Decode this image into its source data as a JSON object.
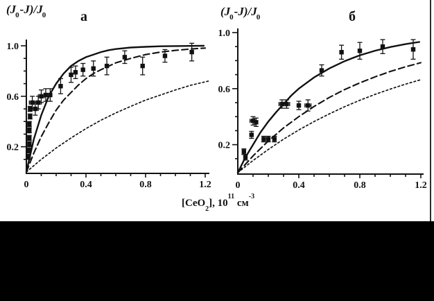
{
  "figure": {
    "panels": [
      {
        "letter": "а"
      },
      {
        "letter": "б"
      }
    ],
    "ylabel_parts": {
      "p1": "(J",
      "s1": "0",
      "p2": "-J)/J",
      "s2": "0"
    },
    "xlabel_parts": {
      "t1": "[CeO",
      "s1": "2",
      "t2": "], 10",
      "u1": "11",
      "t3": " см",
      "u2": "-3"
    },
    "colors": {
      "ink": "#111111",
      "background": "#ffffff",
      "redaction": "#000000"
    }
  },
  "chart_data": [
    {
      "type": "scatter",
      "panel": "а",
      "ylabel": "(J0-J)/J0",
      "xlabel": "[CeO2], 10^11 см^-3",
      "xlim": [
        0,
        1.25
      ],
      "ylim": [
        0,
        1.06
      ],
      "grid": false,
      "legend": null,
      "xticks": [
        [
          "0",
          0
        ],
        [
          "0.4",
          0.4
        ],
        [
          "0.8",
          0.8
        ],
        [
          "1.2",
          1.2
        ]
      ],
      "yticks": [
        [
          "0.2",
          0.2
        ],
        [
          "0.6",
          0.6
        ],
        [
          "1.0",
          1.0
        ]
      ],
      "minor_step": 0.1,
      "points": [
        [
          0.015,
          0.12,
          0.02,
          0
        ],
        [
          0.015,
          0.17,
          0.02,
          0
        ],
        [
          0.02,
          0.22,
          0.02,
          0
        ],
        [
          0.02,
          0.27,
          0.02,
          0
        ],
        [
          0.02,
          0.33,
          0.02,
          0
        ],
        [
          0.02,
          0.38,
          0.02,
          0
        ],
        [
          0.025,
          0.44,
          0.02,
          0
        ],
        [
          0.025,
          0.5,
          0.02,
          0
        ],
        [
          0.04,
          0.55,
          0.05,
          0.02
        ],
        [
          0.06,
          0.5,
          0.05,
          0.02
        ],
        [
          0.08,
          0.55,
          0.05,
          0.02
        ],
        [
          0.1,
          0.6,
          0.05,
          0.02
        ],
        [
          0.13,
          0.61,
          0.05,
          0
        ],
        [
          0.16,
          0.61,
          0.05,
          0
        ],
        [
          0.23,
          0.68,
          0.06,
          0
        ],
        [
          0.3,
          0.77,
          0.06,
          0
        ],
        [
          0.33,
          0.79,
          0.05,
          0
        ],
        [
          0.38,
          0.81,
          0.05,
          0
        ],
        [
          0.45,
          0.82,
          0.06,
          0
        ],
        [
          0.54,
          0.84,
          0.07,
          0
        ],
        [
          0.66,
          0.91,
          0.05,
          0
        ],
        [
          0.78,
          0.84,
          0.07,
          0
        ],
        [
          0.93,
          0.92,
          0.05,
          0
        ],
        [
          1.11,
          0.95,
          0.07,
          0
        ]
      ],
      "curves": [
        {
          "name": "fit-solid",
          "style": "solid",
          "points": [
            [
              0,
              0
            ],
            [
              0.05,
              0.26
            ],
            [
              0.1,
              0.45
            ],
            [
              0.15,
              0.6
            ],
            [
              0.2,
              0.7
            ],
            [
              0.25,
              0.78
            ],
            [
              0.3,
              0.84
            ],
            [
              0.35,
              0.88
            ],
            [
              0.4,
              0.91
            ],
            [
              0.45,
              0.93
            ],
            [
              0.5,
              0.95
            ],
            [
              0.55,
              0.965
            ],
            [
              0.6,
              0.974
            ],
            [
              0.7,
              0.986
            ],
            [
              0.8,
              0.992
            ],
            [
              0.9,
              0.996
            ],
            [
              1.0,
              0.998
            ],
            [
              1.1,
              0.999
            ],
            [
              1.19,
              1.0
            ]
          ]
        },
        {
          "name": "fit-dashed",
          "style": "dashed",
          "points": [
            [
              0,
              0
            ],
            [
              0.05,
              0.15
            ],
            [
              0.1,
              0.28
            ],
            [
              0.15,
              0.39
            ],
            [
              0.2,
              0.49
            ],
            [
              0.25,
              0.57
            ],
            [
              0.3,
              0.63
            ],
            [
              0.35,
              0.69
            ],
            [
              0.4,
              0.74
            ],
            [
              0.45,
              0.78
            ],
            [
              0.5,
              0.81
            ],
            [
              0.6,
              0.865
            ],
            [
              0.7,
              0.9
            ],
            [
              0.8,
              0.93
            ],
            [
              0.9,
              0.95
            ],
            [
              1.0,
              0.964
            ],
            [
              1.1,
              0.974
            ],
            [
              1.2,
              0.982
            ]
          ]
        },
        {
          "name": "fit-dotted",
          "style": "dotted",
          "points": [
            [
              0,
              0
            ],
            [
              0.1,
              0.1
            ],
            [
              0.2,
              0.19
            ],
            [
              0.3,
              0.27
            ],
            [
              0.4,
              0.344
            ],
            [
              0.5,
              0.41
            ],
            [
              0.6,
              0.468
            ],
            [
              0.7,
              0.52
            ],
            [
              0.8,
              0.57
            ],
            [
              0.9,
              0.61
            ],
            [
              1.0,
              0.65
            ],
            [
              1.1,
              0.686
            ],
            [
              1.22,
              0.72
            ]
          ]
        }
      ]
    },
    {
      "type": "scatter",
      "panel": "б",
      "ylabel": "(J0-J)/J0",
      "xlabel": "[CeO2], 10^11 см^-3",
      "xlim": [
        0,
        1.25
      ],
      "ylim": [
        0,
        1.06
      ],
      "grid": false,
      "legend": null,
      "xticks": [
        [
          "0",
          0
        ],
        [
          "0.4",
          0.4
        ],
        [
          "0.8",
          0.8
        ],
        [
          "1.2",
          1.2
        ]
      ],
      "yticks": [
        [
          "0.2",
          0.2
        ],
        [
          "0.6",
          0.6
        ],
        [
          "1.0",
          1.0
        ]
      ],
      "minor_step": 0.1,
      "points": [
        [
          0.04,
          0.15,
          0.02,
          0
        ],
        [
          0.05,
          0.11,
          0.02,
          0
        ],
        [
          0.09,
          0.27,
          0.025,
          0
        ],
        [
          0.1,
          0.37,
          0.03,
          0.02
        ],
        [
          0.12,
          0.36,
          0.03,
          0
        ],
        [
          0.17,
          0.24,
          0.02,
          0
        ],
        [
          0.2,
          0.24,
          0.02,
          0
        ],
        [
          0.24,
          0.24,
          0.02,
          0
        ],
        [
          0.29,
          0.49,
          0.03,
          0.02
        ],
        [
          0.32,
          0.49,
          0.03,
          0.02
        ],
        [
          0.4,
          0.48,
          0.03,
          0
        ],
        [
          0.46,
          0.48,
          0.04,
          0.02
        ],
        [
          0.55,
          0.73,
          0.04,
          0
        ],
        [
          0.68,
          0.86,
          0.05,
          0
        ],
        [
          0.8,
          0.87,
          0.06,
          0
        ],
        [
          0.95,
          0.9,
          0.05,
          0
        ],
        [
          1.15,
          0.88,
          0.07,
          0
        ]
      ],
      "curves": [
        {
          "name": "fit-solid",
          "style": "solid",
          "points": [
            [
              0,
              0
            ],
            [
              0.05,
              0.11
            ],
            [
              0.1,
              0.2
            ],
            [
              0.15,
              0.29
            ],
            [
              0.2,
              0.365
            ],
            [
              0.25,
              0.43
            ],
            [
              0.3,
              0.49
            ],
            [
              0.35,
              0.55
            ],
            [
              0.4,
              0.6
            ],
            [
              0.45,
              0.64
            ],
            [
              0.5,
              0.68
            ],
            [
              0.6,
              0.744
            ],
            [
              0.7,
              0.796
            ],
            [
              0.8,
              0.838
            ],
            [
              0.9,
              0.871
            ],
            [
              1.0,
              0.897
            ],
            [
              1.1,
              0.918
            ],
            [
              1.19,
              0.933
            ]
          ]
        },
        {
          "name": "fit-dashed",
          "style": "dashed",
          "points": [
            [
              0,
              0
            ],
            [
              0.1,
              0.12
            ],
            [
              0.2,
              0.226
            ],
            [
              0.3,
              0.32
            ],
            [
              0.4,
              0.4
            ],
            [
              0.5,
              0.473
            ],
            [
              0.6,
              0.537
            ],
            [
              0.7,
              0.593
            ],
            [
              0.8,
              0.641
            ],
            [
              0.9,
              0.684
            ],
            [
              1.0,
              0.723
            ],
            [
              1.1,
              0.756
            ],
            [
              1.2,
              0.785
            ]
          ]
        },
        {
          "name": "fit-dotted",
          "style": "dotted",
          "points": [
            [
              0,
              0
            ],
            [
              0.1,
              0.087
            ],
            [
              0.2,
              0.166
            ],
            [
              0.3,
              0.239
            ],
            [
              0.4,
              0.305
            ],
            [
              0.5,
              0.365
            ],
            [
              0.6,
              0.42
            ],
            [
              0.7,
              0.471
            ],
            [
              0.8,
              0.517
            ],
            [
              0.9,
              0.559
            ],
            [
              1.0,
              0.597
            ],
            [
              1.1,
              0.632
            ],
            [
              1.2,
              0.664
            ]
          ]
        }
      ]
    }
  ]
}
